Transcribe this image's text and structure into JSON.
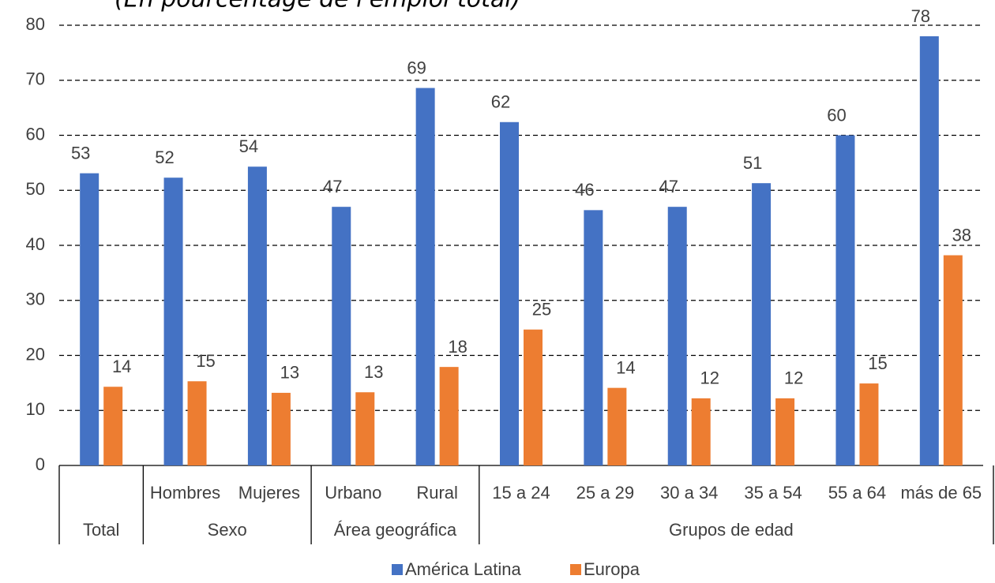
{
  "chart_data": {
    "type": "bar",
    "subtitle": "(En pourcentage de l'emploi total)",
    "categories": [
      null,
      "Hombres",
      "Mujeres",
      "Urbano",
      "Rural",
      "15 a 24",
      "25 a 29",
      "30 a 34",
      "35 a 54",
      "55 a 64",
      "más de 65"
    ],
    "groups": [
      {
        "label": "Total",
        "span": 1
      },
      {
        "label": "Sexo",
        "span": 2
      },
      {
        "label": "Área geográfica",
        "span": 2
      },
      {
        "label": "Grupos de edad",
        "span": 6
      }
    ],
    "series": [
      {
        "name": "América Latina",
        "color": "#4472c4",
        "values": [
          53.1,
          52.3,
          54.3,
          47,
          68.6,
          62.4,
          46.4,
          47,
          51.3,
          60,
          78
        ],
        "value_labels": [
          "53",
          "52",
          "54",
          "47",
          "69",
          "62",
          "46",
          "47",
          "51",
          "60",
          "78"
        ]
      },
      {
        "name": "Europa",
        "color": "#ed7d31",
        "values": [
          14.3,
          15.3,
          13.2,
          13.3,
          17.9,
          24.7,
          14.1,
          12.2,
          12.2,
          14.9,
          38.2
        ],
        "value_labels": [
          "14",
          "15",
          "13",
          "13",
          "18",
          "25",
          "14",
          "12",
          "12",
          "15",
          "38"
        ]
      }
    ],
    "ylim": [
      0,
      80
    ],
    "yticks": [
      0,
      10,
      20,
      30,
      40,
      50,
      60,
      70,
      80
    ],
    "grid": true,
    "legend": "bottom"
  }
}
